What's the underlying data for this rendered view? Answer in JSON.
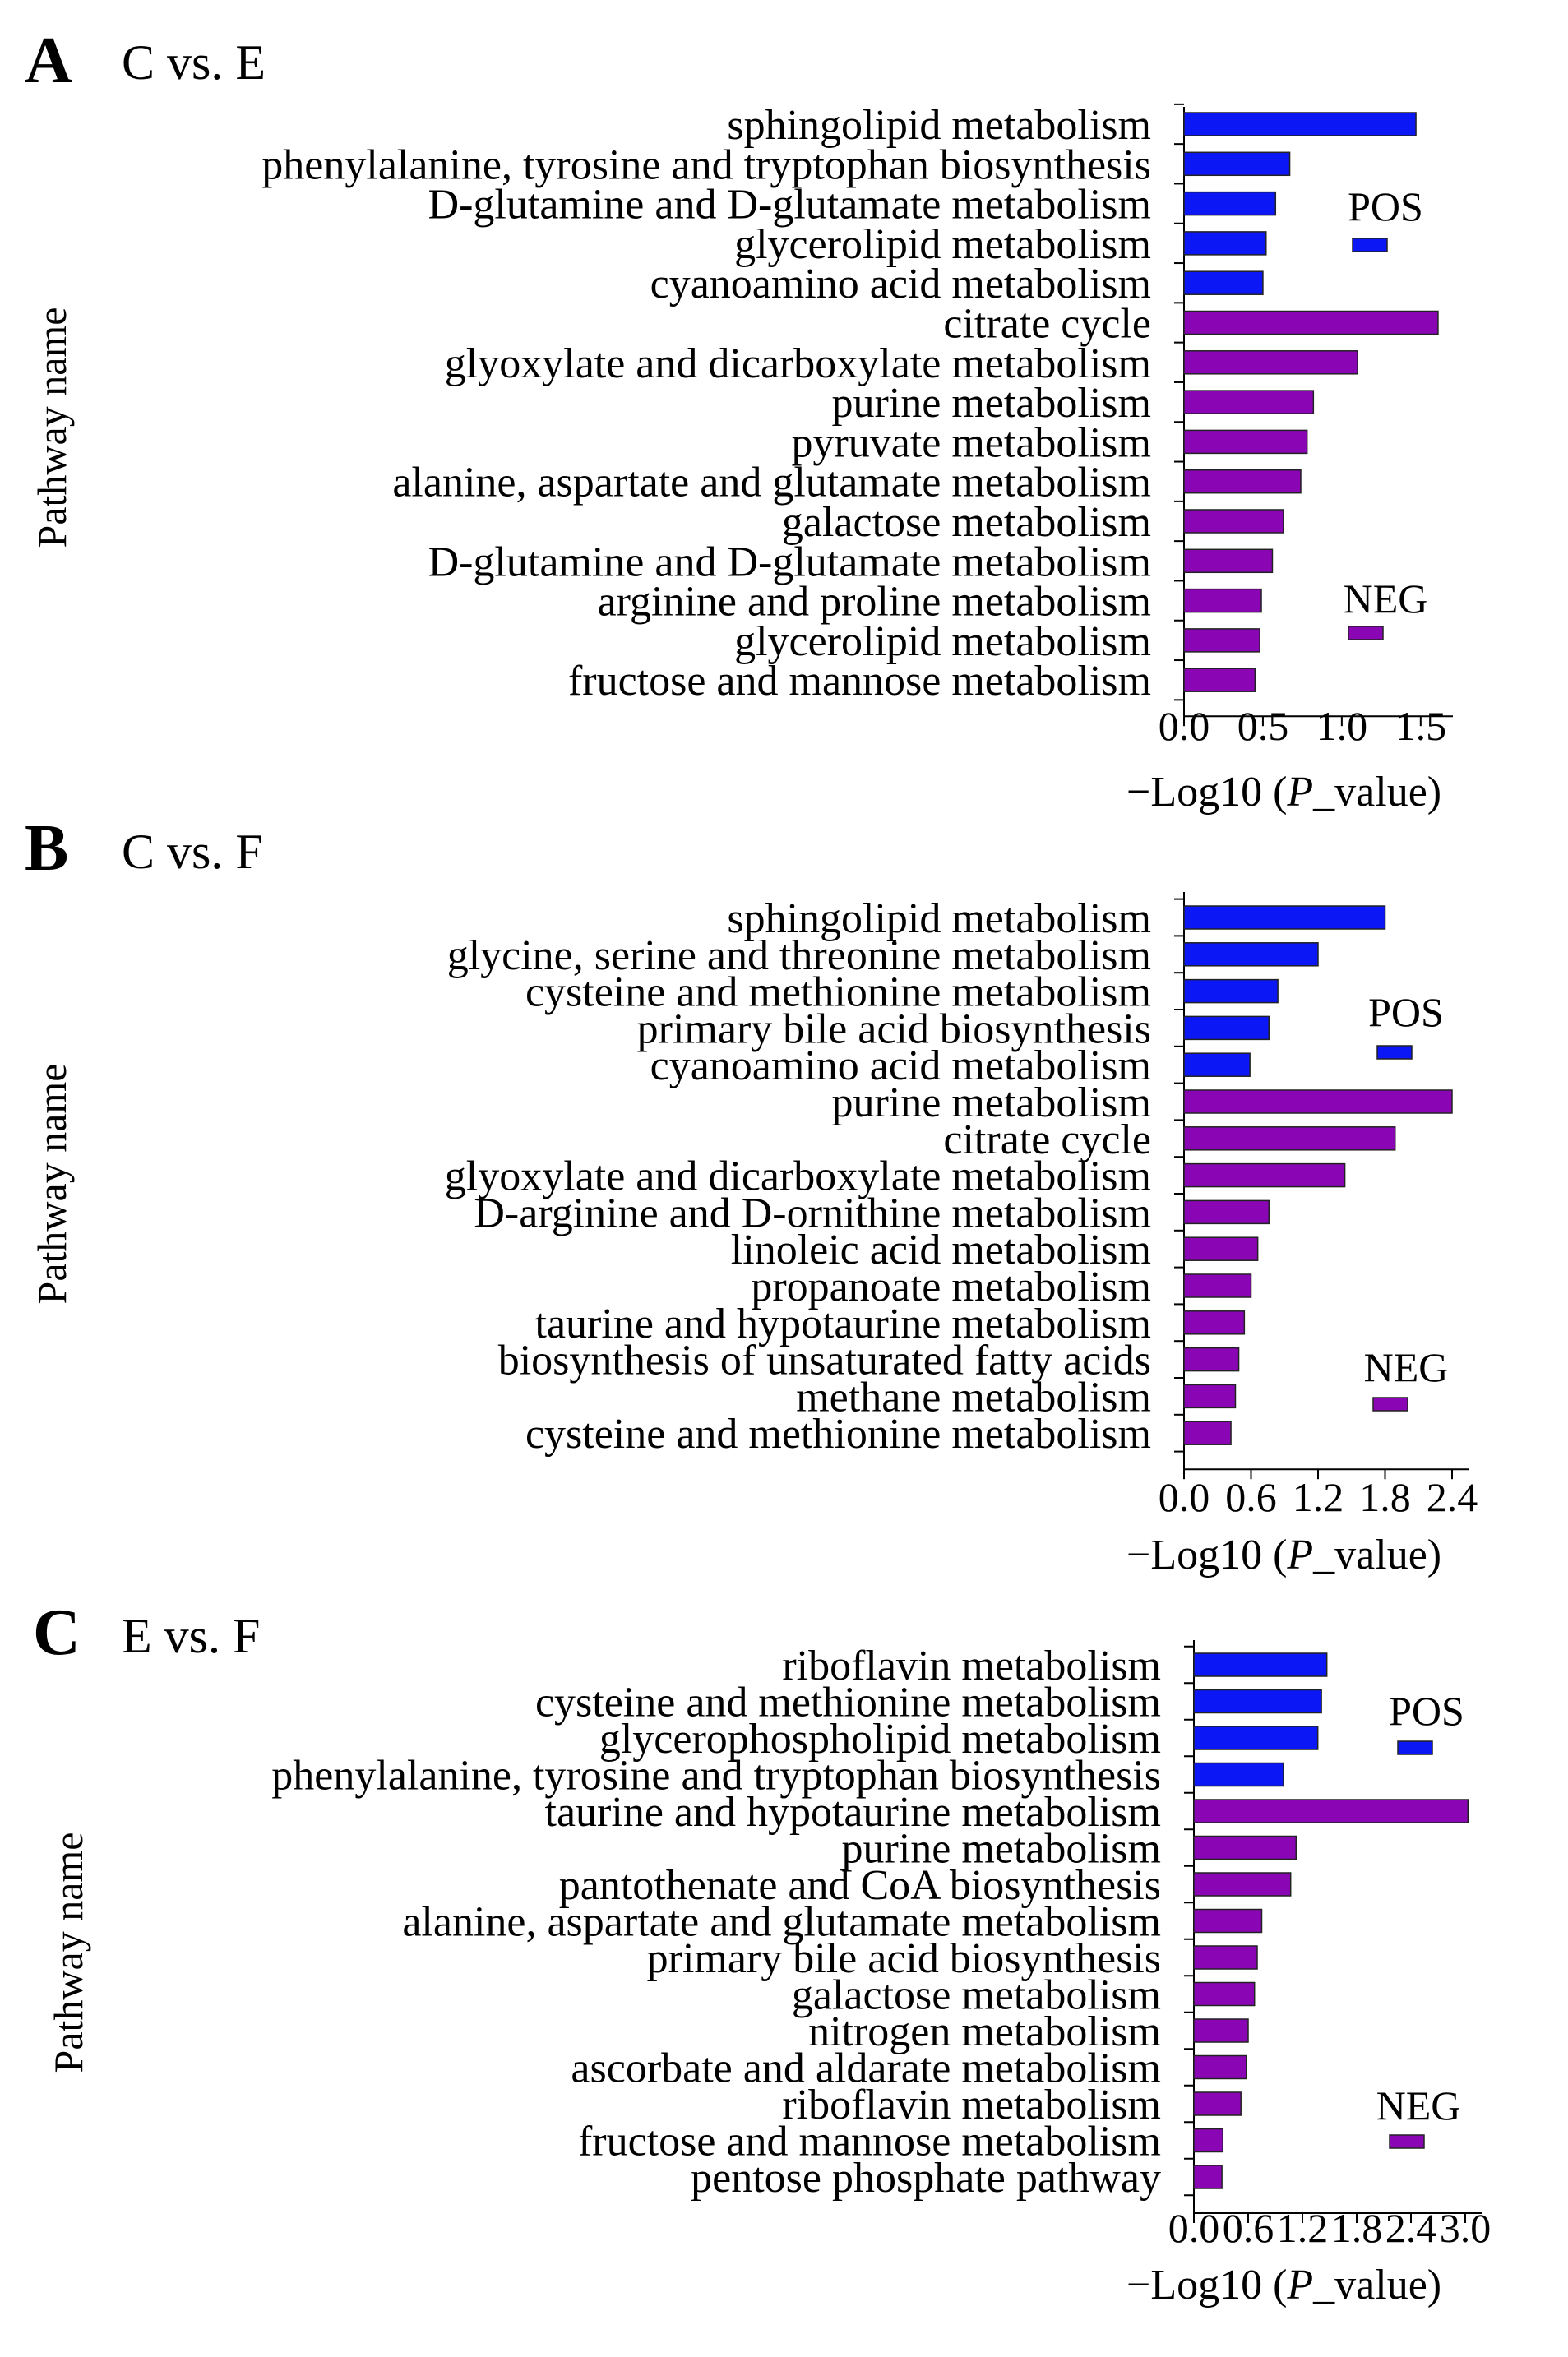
{
  "colors": {
    "pos": "#0b17f5",
    "neg": "#8a06b5",
    "axis": "#000000"
  },
  "chart_data": [
    {
      "type": "bar",
      "orientation": "horizontal",
      "panel_letter": "A",
      "title": "C vs. E",
      "ylabel": "Pathway name",
      "xlabel_prefix": "−Log10 (",
      "xlabel_italic": "P",
      "xlabel_suffix": "_value)",
      "xlim": [
        0,
        1.6
      ],
      "ticks": [
        "0.0",
        "0.5",
        "1.0",
        "1.5"
      ],
      "tick_values": [
        0,
        0.5,
        1.0,
        1.5
      ],
      "legend": [
        {
          "name": "POS",
          "color": "#0b17f5"
        },
        {
          "name": "NEG",
          "color": "#8a06b5"
        }
      ],
      "series": [
        {
          "name": "POS",
          "categories": [
            "sphingolipid metabolism",
            "phenylalanine, tyrosine and tryptophan biosynthesis",
            "D-glutamine and D-glutamate metabolism",
            "glycerolipid metabolism",
            "cyanoamino acid metabolism"
          ],
          "values": [
            1.47,
            0.67,
            0.58,
            0.52,
            0.5
          ]
        },
        {
          "name": "NEG",
          "categories": [
            "citrate cycle",
            "glyoxylate and dicarboxylate metabolism",
            "purine metabolism",
            "pyruvate metabolism",
            "alanine, aspartate and glutamate metabolism",
            "galactose metabolism",
            "D-glutamine and D-glutamate metabolism",
            "arginine and proline metabolism",
            "glycerolipid metabolism",
            "fructose and mannose metabolism"
          ],
          "values": [
            1.61,
            1.1,
            0.82,
            0.78,
            0.74,
            0.63,
            0.56,
            0.49,
            0.48,
            0.45
          ]
        }
      ]
    },
    {
      "type": "bar",
      "orientation": "horizontal",
      "panel_letter": "B",
      "title": "C vs. F",
      "ylabel": "Pathway name",
      "xlabel_prefix": "−Log10 (",
      "xlabel_italic": "P",
      "xlabel_suffix": "_value)",
      "xlim": [
        0,
        2.4
      ],
      "ticks": [
        "0.0",
        "0.6",
        "1.2",
        "1.8",
        "2.4"
      ],
      "tick_values": [
        0,
        0.6,
        1.2,
        1.8,
        2.4
      ],
      "legend": [
        {
          "name": "POS",
          "color": "#0b17f5"
        },
        {
          "name": "NEG",
          "color": "#8a06b5"
        }
      ],
      "series": [
        {
          "name": "POS",
          "categories": [
            "sphingolipid metabolism",
            "glycine, serine and threonine metabolism",
            "cysteine and methionine metabolism",
            "primary bile acid biosynthesis",
            "cyanoamino acid metabolism"
          ],
          "values": [
            1.8,
            1.2,
            0.84,
            0.76,
            0.59
          ]
        },
        {
          "name": "NEG",
          "categories": [
            "purine metabolism",
            "citrate cycle",
            "glyoxylate and dicarboxylate metabolism",
            "D-arginine and D-ornithine metabolism",
            "linoleic acid metabolism",
            "propanoate metabolism",
            "taurine and hypotaurine metabolism",
            "biosynthesis of unsaturated fatty acids",
            "methane metabolism",
            "cysteine and methionine metabolism"
          ],
          "values": [
            2.4,
            1.89,
            1.44,
            0.76,
            0.66,
            0.6,
            0.54,
            0.49,
            0.46,
            0.42
          ]
        }
      ]
    },
    {
      "type": "bar",
      "orientation": "horizontal",
      "panel_letter": "C",
      "title": "E vs. F",
      "ylabel": "Pathway name",
      "xlabel_prefix": "−Log10 (",
      "xlabel_italic": "P",
      "xlabel_suffix": "_value)",
      "xlim": [
        0,
        3.0
      ],
      "ticks": [
        "0.0",
        "0.6",
        "1.2",
        "1.8",
        "2.4",
        "3.0"
      ],
      "tick_values": [
        0,
        0.6,
        1.2,
        1.8,
        2.4,
        3.0
      ],
      "legend": [
        {
          "name": "POS",
          "color": "#0b17f5"
        },
        {
          "name": "NEG",
          "color": "#8a06b5"
        }
      ],
      "series": [
        {
          "name": "POS",
          "categories": [
            "riboflavin metabolism",
            "cysteine and methionine metabolism",
            "glycerophospholipid metabolism",
            "phenylalanine, tyrosine and tryptophan biosynthesis"
          ],
          "values": [
            1.47,
            1.41,
            1.37,
            0.99
          ]
        },
        {
          "name": "NEG",
          "categories": [
            "taurine and hypotaurine metabolism",
            "purine metabolism",
            "pantothenate and CoA biosynthesis",
            "alanine, aspartate and glutamate metabolism",
            "primary bile acid biosynthesis",
            "galactose metabolism",
            "nitrogen metabolism",
            "ascorbate and aldarate metabolism",
            "riboflavin metabolism",
            "fructose and mannose metabolism",
            "pentose phosphate pathway"
          ],
          "values": [
            3.03,
            1.13,
            1.07,
            0.75,
            0.7,
            0.67,
            0.6,
            0.58,
            0.52,
            0.32,
            0.31
          ]
        }
      ]
    }
  ]
}
